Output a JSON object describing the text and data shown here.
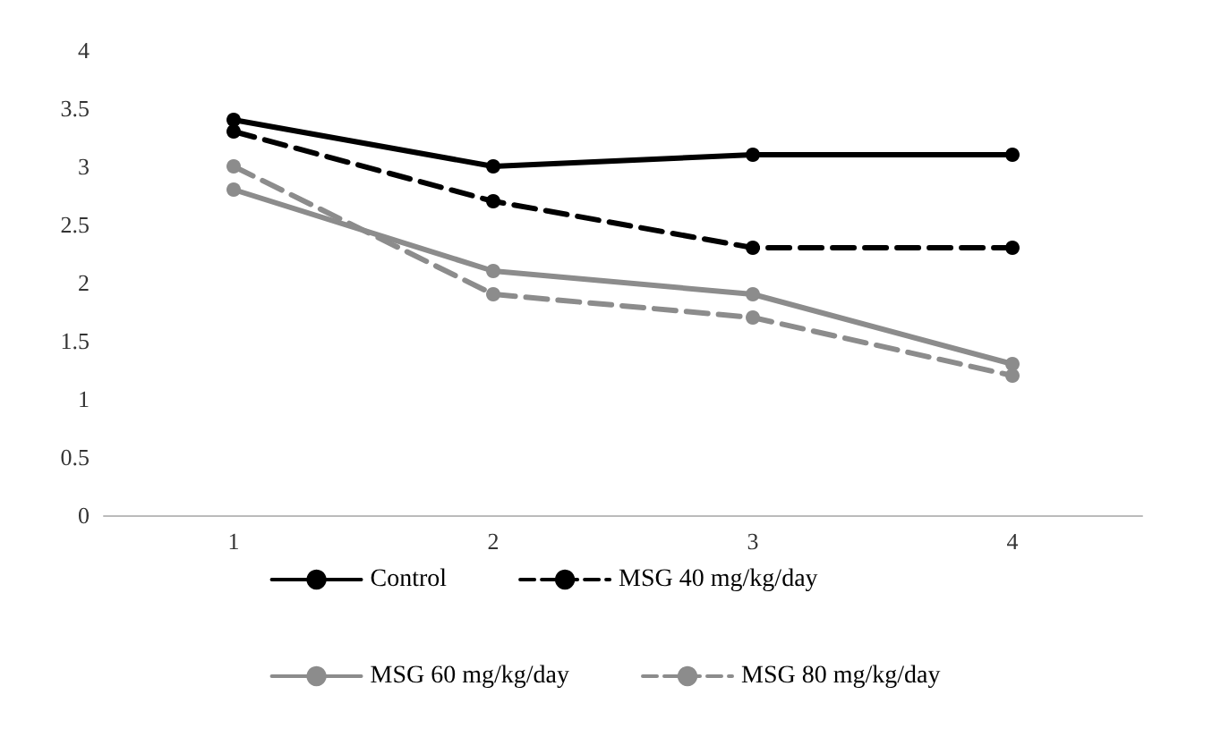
{
  "chart_data": {
    "type": "line",
    "categories": [
      "1",
      "2",
      "3",
      "4"
    ],
    "series": [
      {
        "name": "Control",
        "color": "#000000",
        "line_style": "solid",
        "values": [
          3.4,
          3.0,
          3.1,
          3.1
        ]
      },
      {
        "name": "MSG 40 mg/kg/day",
        "color": "#000000",
        "line_style": "dashed",
        "values": [
          3.3,
          2.7,
          2.3,
          2.3
        ]
      },
      {
        "name": "MSG 60 mg/kg/day",
        "color": "#8c8c8c",
        "line_style": "solid",
        "values": [
          2.8,
          2.1,
          1.9,
          1.3
        ]
      },
      {
        "name": "MSG 80 mg/kg/day",
        "color": "#8c8c8c",
        "line_style": "dashed",
        "values": [
          3.0,
          1.9,
          1.7,
          1.2
        ]
      }
    ],
    "ylim": [
      0,
      4
    ],
    "yticks": [
      0,
      0.5,
      1,
      1.5,
      2,
      2.5,
      3,
      3.5,
      4
    ],
    "grid": false,
    "legend": "bottom",
    "marker": "circle"
  }
}
